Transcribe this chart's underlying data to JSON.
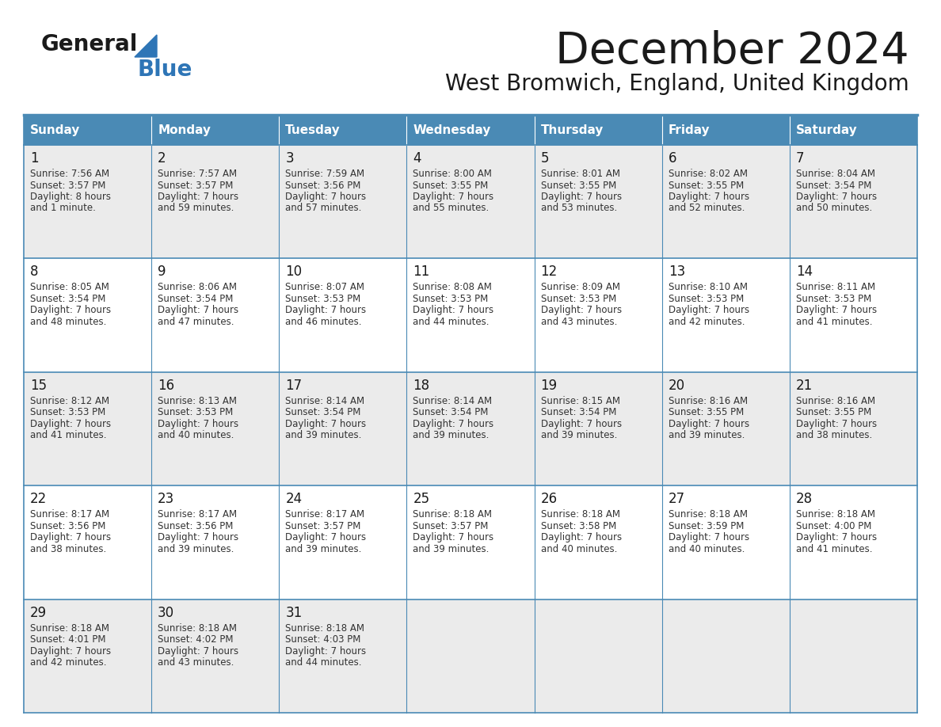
{
  "title": "December 2024",
  "subtitle": "West Bromwich, England, United Kingdom",
  "header_color": "#4A8AB5",
  "header_text_color": "#FFFFFF",
  "border_color": "#4A8AB5",
  "row_bg_odd": "#EBEBEB",
  "row_bg_even": "#FFFFFF",
  "text_color": "#333333",
  "day_num_color": "#1a1a1a",
  "days_of_week": [
    "Sunday",
    "Monday",
    "Tuesday",
    "Wednesday",
    "Thursday",
    "Friday",
    "Saturday"
  ],
  "weeks": [
    [
      {
        "day": "1",
        "sunrise": "7:56 AM",
        "sunset": "3:57 PM",
        "daylight_h": "8 hours",
        "daylight_m": "and 1 minute."
      },
      {
        "day": "2",
        "sunrise": "7:57 AM",
        "sunset": "3:57 PM",
        "daylight_h": "7 hours",
        "daylight_m": "and 59 minutes."
      },
      {
        "day": "3",
        "sunrise": "7:59 AM",
        "sunset": "3:56 PM",
        "daylight_h": "7 hours",
        "daylight_m": "and 57 minutes."
      },
      {
        "day": "4",
        "sunrise": "8:00 AM",
        "sunset": "3:55 PM",
        "daylight_h": "7 hours",
        "daylight_m": "and 55 minutes."
      },
      {
        "day": "5",
        "sunrise": "8:01 AM",
        "sunset": "3:55 PM",
        "daylight_h": "7 hours",
        "daylight_m": "and 53 minutes."
      },
      {
        "day": "6",
        "sunrise": "8:02 AM",
        "sunset": "3:55 PM",
        "daylight_h": "7 hours",
        "daylight_m": "and 52 minutes."
      },
      {
        "day": "7",
        "sunrise": "8:04 AM",
        "sunset": "3:54 PM",
        "daylight_h": "7 hours",
        "daylight_m": "and 50 minutes."
      }
    ],
    [
      {
        "day": "8",
        "sunrise": "8:05 AM",
        "sunset": "3:54 PM",
        "daylight_h": "7 hours",
        "daylight_m": "and 48 minutes."
      },
      {
        "day": "9",
        "sunrise": "8:06 AM",
        "sunset": "3:54 PM",
        "daylight_h": "7 hours",
        "daylight_m": "and 47 minutes."
      },
      {
        "day": "10",
        "sunrise": "8:07 AM",
        "sunset": "3:53 PM",
        "daylight_h": "7 hours",
        "daylight_m": "and 46 minutes."
      },
      {
        "day": "11",
        "sunrise": "8:08 AM",
        "sunset": "3:53 PM",
        "daylight_h": "7 hours",
        "daylight_m": "and 44 minutes."
      },
      {
        "day": "12",
        "sunrise": "8:09 AM",
        "sunset": "3:53 PM",
        "daylight_h": "7 hours",
        "daylight_m": "and 43 minutes."
      },
      {
        "day": "13",
        "sunrise": "8:10 AM",
        "sunset": "3:53 PM",
        "daylight_h": "7 hours",
        "daylight_m": "and 42 minutes."
      },
      {
        "day": "14",
        "sunrise": "8:11 AM",
        "sunset": "3:53 PM",
        "daylight_h": "7 hours",
        "daylight_m": "and 41 minutes."
      }
    ],
    [
      {
        "day": "15",
        "sunrise": "8:12 AM",
        "sunset": "3:53 PM",
        "daylight_h": "7 hours",
        "daylight_m": "and 41 minutes."
      },
      {
        "day": "16",
        "sunrise": "8:13 AM",
        "sunset": "3:53 PM",
        "daylight_h": "7 hours",
        "daylight_m": "and 40 minutes."
      },
      {
        "day": "17",
        "sunrise": "8:14 AM",
        "sunset": "3:54 PM",
        "daylight_h": "7 hours",
        "daylight_m": "and 39 minutes."
      },
      {
        "day": "18",
        "sunrise": "8:14 AM",
        "sunset": "3:54 PM",
        "daylight_h": "7 hours",
        "daylight_m": "and 39 minutes."
      },
      {
        "day": "19",
        "sunrise": "8:15 AM",
        "sunset": "3:54 PM",
        "daylight_h": "7 hours",
        "daylight_m": "and 39 minutes."
      },
      {
        "day": "20",
        "sunrise": "8:16 AM",
        "sunset": "3:55 PM",
        "daylight_h": "7 hours",
        "daylight_m": "and 39 minutes."
      },
      {
        "day": "21",
        "sunrise": "8:16 AM",
        "sunset": "3:55 PM",
        "daylight_h": "7 hours",
        "daylight_m": "and 38 minutes."
      }
    ],
    [
      {
        "day": "22",
        "sunrise": "8:17 AM",
        "sunset": "3:56 PM",
        "daylight_h": "7 hours",
        "daylight_m": "and 38 minutes."
      },
      {
        "day": "23",
        "sunrise": "8:17 AM",
        "sunset": "3:56 PM",
        "daylight_h": "7 hours",
        "daylight_m": "and 39 minutes."
      },
      {
        "day": "24",
        "sunrise": "8:17 AM",
        "sunset": "3:57 PM",
        "daylight_h": "7 hours",
        "daylight_m": "and 39 minutes."
      },
      {
        "day": "25",
        "sunrise": "8:18 AM",
        "sunset": "3:57 PM",
        "daylight_h": "7 hours",
        "daylight_m": "and 39 minutes."
      },
      {
        "day": "26",
        "sunrise": "8:18 AM",
        "sunset": "3:58 PM",
        "daylight_h": "7 hours",
        "daylight_m": "and 40 minutes."
      },
      {
        "day": "27",
        "sunrise": "8:18 AM",
        "sunset": "3:59 PM",
        "daylight_h": "7 hours",
        "daylight_m": "and 40 minutes."
      },
      {
        "day": "28",
        "sunrise": "8:18 AM",
        "sunset": "4:00 PM",
        "daylight_h": "7 hours",
        "daylight_m": "and 41 minutes."
      }
    ],
    [
      {
        "day": "29",
        "sunrise": "8:18 AM",
        "sunset": "4:01 PM",
        "daylight_h": "7 hours",
        "daylight_m": "and 42 minutes."
      },
      {
        "day": "30",
        "sunrise": "8:18 AM",
        "sunset": "4:02 PM",
        "daylight_h": "7 hours",
        "daylight_m": "and 43 minutes."
      },
      {
        "day": "31",
        "sunrise": "8:18 AM",
        "sunset": "4:03 PM",
        "daylight_h": "7 hours",
        "daylight_m": "and 44 minutes."
      },
      null,
      null,
      null,
      null
    ]
  ],
  "logo_blue": "#2E75B6",
  "logo_dark": "#1a1a1a"
}
